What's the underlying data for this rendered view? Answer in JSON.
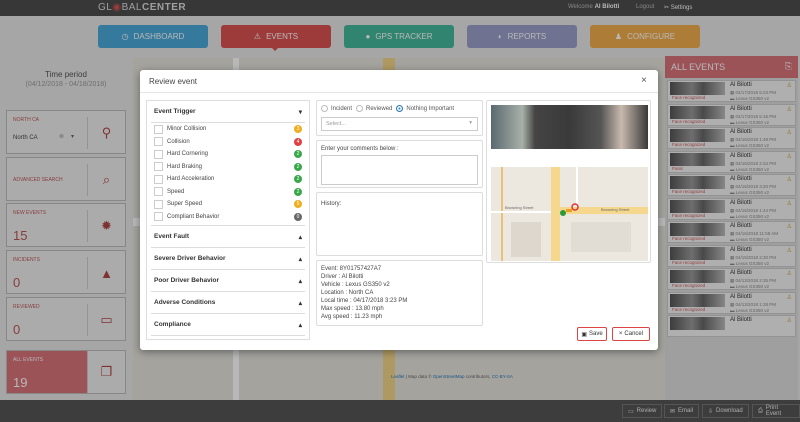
{
  "header": {
    "logo_pre": "GL",
    "logo_mid": "◉",
    "logo_post": "BAL",
    "logo_bold": "CENTER",
    "welcome": "Welcome",
    "user": "Al Bilotti",
    "logout": "Logout",
    "settings": "Settings"
  },
  "nav": [
    {
      "label": "DASHBOARD",
      "icon": "◷",
      "color": "#4aa8d8"
    },
    {
      "label": "EVENTS",
      "icon": "⚠",
      "color": "#d9534f"
    },
    {
      "label": "GPS TRACKER",
      "icon": "●",
      "color": "#45b99c"
    },
    {
      "label": "REPORTS",
      "icon": "◐",
      "color": "#9a9ec8"
    },
    {
      "label": "CONFIGURE",
      "icon": "♟",
      "color": "#f0ad4e"
    }
  ],
  "left": {
    "title": "Time period",
    "range": "(04/12/2018 - 04/18/2018)",
    "cards": [
      {
        "label": "NORTH CA",
        "value": "North CA",
        "icon": "⚲"
      },
      {
        "label": "ADVANCED SEARCH",
        "value": "",
        "icon": "⌕"
      },
      {
        "label": "NEW EVENTS",
        "value": "15",
        "icon": "✹"
      },
      {
        "label": "INCIDENTS",
        "value": "0",
        "icon": "▲"
      },
      {
        "label": "REVIEWED",
        "value": "0",
        "icon": "▭"
      },
      {
        "label": "ALL EVENTS",
        "value": "19",
        "icon": "❐"
      }
    ]
  },
  "events_panel": {
    "title": "ALL EVENTS",
    "items": [
      {
        "name": "Al Bilotti",
        "date": "04/17/2018 5:23 PM",
        "vehicle": "Lexus GS350 v2",
        "tag": "Face recognized"
      },
      {
        "name": "Al Bilotti",
        "date": "04/17/2018 5:16 PM",
        "vehicle": "Lexus GS350 v2",
        "tag": "Face recognized"
      },
      {
        "name": "Al Bilotti",
        "date": "04/16/2018 1:49 PM",
        "vehicle": "Lexus GS350 v2",
        "tag": "Face recognized"
      },
      {
        "name": "Al Bilotti",
        "date": "04/16/2018 2:34 PM",
        "vehicle": "Lexus GS350 v2",
        "tag": "Panic"
      },
      {
        "name": "Al Bilotti",
        "date": "04/16/2018 3:20 PM",
        "vehicle": "Lexus GS350 v2",
        "tag": "Face recognized"
      },
      {
        "name": "Al Bilotti",
        "date": "04/16/2018 1:44 PM",
        "vehicle": "Lexus GS350 v2",
        "tag": "Face recognized"
      },
      {
        "name": "Al Bilotti",
        "date": "04/16/2018 11:58 AM",
        "vehicle": "Lexus GS350 v2",
        "tag": "Face recognized"
      },
      {
        "name": "Al Bilotti",
        "date": "04/15/2018 2:30 PM",
        "vehicle": "Lexus GS350 v2",
        "tag": "Face recognized"
      },
      {
        "name": "Al Bilotti",
        "date": "04/13/2018 2:35 PM",
        "vehicle": "Lexus GS350 v2",
        "tag": "Face recognized"
      },
      {
        "name": "Al Bilotti",
        "date": "04/13/2018 1:28 PM",
        "vehicle": "Lexus GS350 v2",
        "tag": "Face recognized"
      },
      {
        "name": "Al Bilotti",
        "date": "",
        "vehicle": "",
        "tag": ""
      }
    ]
  },
  "footer": {
    "review": "Review",
    "email": "Email",
    "download": "Download",
    "print": "Print Event"
  },
  "map_attribution": {
    "leaflet": "Leaflet",
    "sep": " | Map data © ",
    "osm": "OpenStreetMap",
    "contrib": " contributors, ",
    "license": "CC-BY-SA"
  },
  "modal": {
    "title": "Review event",
    "close": "×",
    "sections": {
      "trigger": "Event Trigger",
      "others": [
        "Event Fault",
        "Severe Driver Behavior",
        "Poor Driver Behavior",
        "Adverse Conditions",
        "Compliance"
      ]
    },
    "triggers": [
      {
        "label": "Minor Collision",
        "count": "3",
        "color": "#f0ad1e"
      },
      {
        "label": "Collision",
        "count": "4",
        "color": "#e04040"
      },
      {
        "label": "Hard Cornering",
        "count": "2",
        "color": "#3aa84a"
      },
      {
        "label": "Hard Braking",
        "count": "2",
        "color": "#3aa84a"
      },
      {
        "label": "Hard Acceleration",
        "count": "2",
        "color": "#3aa84a"
      },
      {
        "label": "Speed",
        "count": "2",
        "color": "#3aa84a"
      },
      {
        "label": "Super Speed",
        "count": "5",
        "color": "#f0ad1e"
      },
      {
        "label": "Compliant Behavior",
        "count": "0",
        "color": "#666"
      }
    ],
    "radios": [
      "Incident",
      "Reviewed",
      "Nothing Important"
    ],
    "selected_radio": "Nothing Important",
    "select_placeholder": "Select...",
    "comments_label": "Enter your comments below :",
    "comments_value": "",
    "history_label": "History:",
    "info": [
      "Event: 8Y01757427A7",
      "Driver : Al Bilotti",
      "Vehicle : Lexus GS350 v2",
      "Location : North CA",
      "Local time : 04/17/2018 3:23 PM",
      "Max speed : 13.80 mph",
      "Avg speed : 11.23 mph"
    ],
    "map_streets": [
      "Browning Street",
      "Browning Street"
    ],
    "save": "Save",
    "cancel": "Cancel"
  }
}
